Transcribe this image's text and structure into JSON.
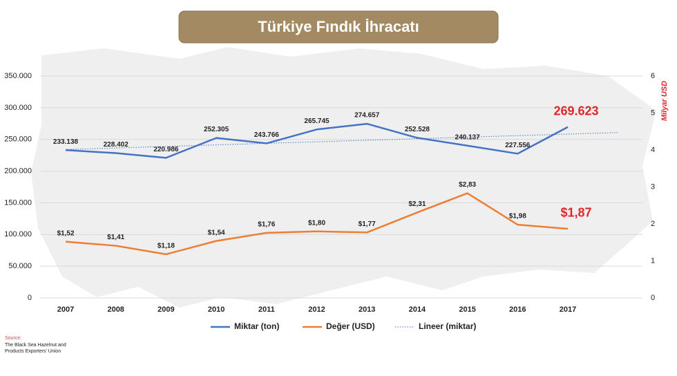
{
  "chart_data": {
    "type": "line",
    "title": "Türkiye Fındık İhracatı",
    "categories": [
      "2007",
      "2008",
      "2009",
      "2010",
      "2011",
      "2012",
      "2013",
      "2014",
      "2015",
      "2016",
      "2017",
      null
    ],
    "ylim": [
      0,
      350000
    ],
    "yticks": [
      0,
      {
        "value": 50000,
        "label": "50.000"
      },
      {
        "value": 100000,
        "label": "100.000"
      },
      {
        "value": 150000,
        "label": "150.000"
      },
      {
        "value": 200000,
        "label": "200.000"
      },
      {
        "value": 250000,
        "label": "250.000"
      },
      {
        "value": 300000,
        "label": "300.000"
      },
      {
        "value": 350000,
        "label": "350.000"
      }
    ],
    "y2lim": [
      0,
      6
    ],
    "y2ticks": [
      0,
      1,
      2,
      3,
      4,
      5,
      6
    ],
    "y2label": "Milyar USD",
    "grid": true,
    "legend": "bottom",
    "highlight_color": "#e0262b",
    "series": [
      {
        "name": "Miktar (ton)",
        "color": "#4472c4",
        "style": "solid",
        "values": [
          233138,
          228402,
          220986,
          252305,
          243766,
          265745,
          274657,
          252528,
          240137,
          227556,
          269623,
          null
        ],
        "value_labels": [
          "233.138",
          "228.402",
          "220.986",
          "252.305",
          "243.766",
          "265.745",
          "274.657",
          "252.528",
          "240.137",
          "227.556",
          "269.623",
          null
        ]
      },
      {
        "name": "Değer (USD)",
        "color": "#ed7d31",
        "style": "solid",
        "axis": "y2",
        "values": [
          1.52,
          1.41,
          1.18,
          1.54,
          1.76,
          1.8,
          1.77,
          2.31,
          2.83,
          1.98,
          1.87,
          null
        ],
        "value_labels": [
          "$1,52",
          "$1,41",
          "$1,18",
          "$1,54",
          "$1,76",
          "$1,80",
          "$1,77",
          "$2,31",
          "$2,83",
          "$1,98",
          "$1,87",
          null
        ]
      },
      {
        "name": "Lineer (miktar)",
        "color": "#4472c4",
        "style": "dotted",
        "values": [
          234083,
          236518,
          238953,
          241388,
          243823,
          246258,
          248693,
          251128,
          253563,
          255998,
          258433,
          260868
        ]
      }
    ]
  },
  "source_label": "Source:",
  "source": [
    "The Black Sea Hazelnut and",
    "Products Exporters' Union"
  ]
}
